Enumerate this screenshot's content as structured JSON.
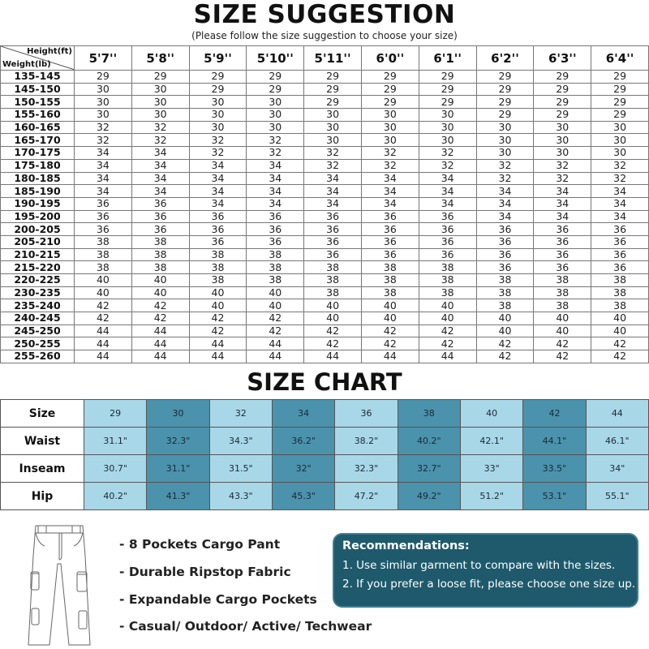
{
  "suggestion": {
    "title": "SIZE SUGGESTION",
    "subtitle": "(Please follow the size suggestion to choose your size)",
    "corner_height_label": "Height(ft)",
    "corner_weight_label": "Weight(lb)",
    "heights": [
      "5'7''",
      "5'8''",
      "5'9''",
      "5'10''",
      "5'11''",
      "6'0''",
      "6'1''",
      "6'2''",
      "6'3''",
      "6'4''"
    ],
    "rows": [
      {
        "weight": "135-145",
        "sizes": [
          "29",
          "29",
          "29",
          "29",
          "29",
          "29",
          "29",
          "29",
          "29",
          "29"
        ]
      },
      {
        "weight": "145-150",
        "sizes": [
          "30",
          "30",
          "29",
          "29",
          "29",
          "29",
          "29",
          "29",
          "29",
          "29"
        ]
      },
      {
        "weight": "150-155",
        "sizes": [
          "30",
          "30",
          "30",
          "30",
          "29",
          "29",
          "29",
          "29",
          "29",
          "29"
        ]
      },
      {
        "weight": "155-160",
        "sizes": [
          "30",
          "30",
          "30",
          "30",
          "30",
          "30",
          "30",
          "29",
          "29",
          "29"
        ]
      },
      {
        "weight": "160-165",
        "sizes": [
          "32",
          "32",
          "30",
          "30",
          "30",
          "30",
          "30",
          "30",
          "30",
          "30"
        ]
      },
      {
        "weight": "165-170",
        "sizes": [
          "32",
          "32",
          "32",
          "32",
          "30",
          "30",
          "30",
          "30",
          "30",
          "30"
        ]
      },
      {
        "weight": "170-175",
        "sizes": [
          "34",
          "34",
          "32",
          "32",
          "32",
          "32",
          "32",
          "30",
          "30",
          "30"
        ]
      },
      {
        "weight": "175-180",
        "sizes": [
          "34",
          "34",
          "34",
          "34",
          "32",
          "32",
          "32",
          "32",
          "32",
          "32"
        ]
      },
      {
        "weight": "180-185",
        "sizes": [
          "34",
          "34",
          "34",
          "34",
          "34",
          "34",
          "34",
          "32",
          "32",
          "32"
        ]
      },
      {
        "weight": "185-190",
        "sizes": [
          "34",
          "34",
          "34",
          "34",
          "34",
          "34",
          "34",
          "34",
          "34",
          "34"
        ]
      },
      {
        "weight": "190-195",
        "sizes": [
          "36",
          "36",
          "34",
          "34",
          "34",
          "34",
          "34",
          "34",
          "34",
          "34"
        ]
      },
      {
        "weight": "195-200",
        "sizes": [
          "36",
          "36",
          "36",
          "36",
          "36",
          "36",
          "36",
          "34",
          "34",
          "34"
        ]
      },
      {
        "weight": "200-205",
        "sizes": [
          "36",
          "36",
          "36",
          "36",
          "36",
          "36",
          "36",
          "36",
          "36",
          "36"
        ]
      },
      {
        "weight": "205-210",
        "sizes": [
          "38",
          "38",
          "36",
          "36",
          "36",
          "36",
          "36",
          "36",
          "36",
          "36"
        ]
      },
      {
        "weight": "210-215",
        "sizes": [
          "38",
          "38",
          "38",
          "38",
          "36",
          "36",
          "36",
          "36",
          "36",
          "36"
        ]
      },
      {
        "weight": "215-220",
        "sizes": [
          "38",
          "38",
          "38",
          "38",
          "38",
          "38",
          "38",
          "36",
          "36",
          "36"
        ]
      },
      {
        "weight": "220-225",
        "sizes": [
          "40",
          "40",
          "38",
          "38",
          "38",
          "38",
          "38",
          "38",
          "38",
          "38"
        ]
      },
      {
        "weight": "230-235",
        "sizes": [
          "40",
          "40",
          "40",
          "40",
          "38",
          "38",
          "38",
          "38",
          "38",
          "38"
        ]
      },
      {
        "weight": "235-240",
        "sizes": [
          "42",
          "42",
          "40",
          "40",
          "40",
          "40",
          "40",
          "38",
          "38",
          "38"
        ]
      },
      {
        "weight": "240-245",
        "sizes": [
          "42",
          "42",
          "42",
          "42",
          "40",
          "40",
          "40",
          "40",
          "40",
          "40"
        ]
      },
      {
        "weight": "245-250",
        "sizes": [
          "44",
          "44",
          "42",
          "42",
          "42",
          "42",
          "42",
          "40",
          "40",
          "40"
        ]
      },
      {
        "weight": "250-255",
        "sizes": [
          "44",
          "44",
          "44",
          "44",
          "42",
          "42",
          "42",
          "42",
          "42",
          "42"
        ]
      },
      {
        "weight": "255-260",
        "sizes": [
          "44",
          "44",
          "44",
          "44",
          "44",
          "44",
          "44",
          "42",
          "42",
          "42"
        ]
      }
    ]
  },
  "chart": {
    "title": "SIZE CHART",
    "colors": {
      "light": "#a8d7e8",
      "dark": "#4b92ac"
    },
    "rows": [
      {
        "label": "Size",
        "values": [
          "29",
          "30",
          "32",
          "34",
          "36",
          "38",
          "40",
          "42",
          "44"
        ]
      },
      {
        "label": "Waist",
        "values": [
          "31.1\"",
          "32.3\"",
          "34.3\"",
          "36.2\"",
          "38.2\"",
          "40.2\"",
          "42.1\"",
          "44.1\"",
          "46.1\""
        ]
      },
      {
        "label": "Inseam",
        "values": [
          "30.7\"",
          "31.1\"",
          "31.5\"",
          "32\"",
          "32.3\"",
          "32.7\"",
          "33\"",
          "33.5\"",
          "34\""
        ]
      },
      {
        "label": "Hip",
        "values": [
          "40.2\"",
          "41.3\"",
          "43.3\"",
          "45.3\"",
          "47.2\"",
          "49.2\"",
          "51.2\"",
          "53.1\"",
          "55.1\""
        ]
      }
    ]
  },
  "features": [
    "- 8 Pockets Cargo Pant",
    "- Durable Ripstop Fabric",
    "- Expandable Cargo Pockets",
    "- Casual/ Outdoor/ Active/ Techwear"
  ],
  "recommendations": {
    "title": "Recommendations:",
    "color": "#1e5a6c",
    "items": [
      "1. Use similar garment to compare with the sizes.",
      "2. If you prefer a loose fit, please choose one size up."
    ]
  }
}
